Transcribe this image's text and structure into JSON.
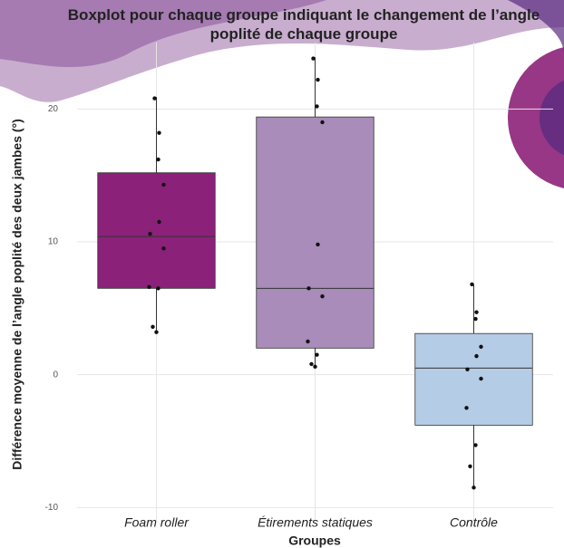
{
  "chart_data": {
    "type": "boxplot",
    "title": "Boxplot pour chaque groupe indiquant le changement de l’angle poplité de chaque groupe",
    "x_label": "Groupes",
    "y_label": "Différence moyenne de l’angle poplité des deux jambes (°)",
    "categories": [
      "Foam roller",
      "Étirements statiques",
      "Contrôle"
    ],
    "boxes": [
      {
        "color": "#8c2179",
        "min": 3.2,
        "q1": 6.5,
        "median": 10.4,
        "q3": 15.2,
        "max": 20.9,
        "points": [
          20.8,
          18.2,
          16.2,
          14.3,
          11.5,
          10.6,
          9.5,
          6.6,
          6.5,
          3.6,
          3.2
        ]
      },
      {
        "color": "#a98cb9",
        "min": 0.6,
        "q1": 2.0,
        "median": 6.5,
        "q3": 19.4,
        "max": 23.9,
        "points": [
          23.8,
          22.2,
          20.2,
          19.0,
          9.8,
          6.5,
          5.9,
          2.5,
          1.5,
          0.8,
          0.6
        ]
      },
      {
        "color": "#b4cce5",
        "min": -8.5,
        "q1": -3.8,
        "median": 0.5,
        "q3": 3.1,
        "max": 6.8,
        "points": [
          6.8,
          4.7,
          4.2,
          2.1,
          1.4,
          0.4,
          -0.3,
          -2.5,
          -5.3,
          -6.9,
          -8.5
        ]
      }
    ],
    "ylim": [
      -11,
      25
    ],
    "yticks": [
      -10,
      0,
      10,
      20
    ],
    "grid": true
  }
}
